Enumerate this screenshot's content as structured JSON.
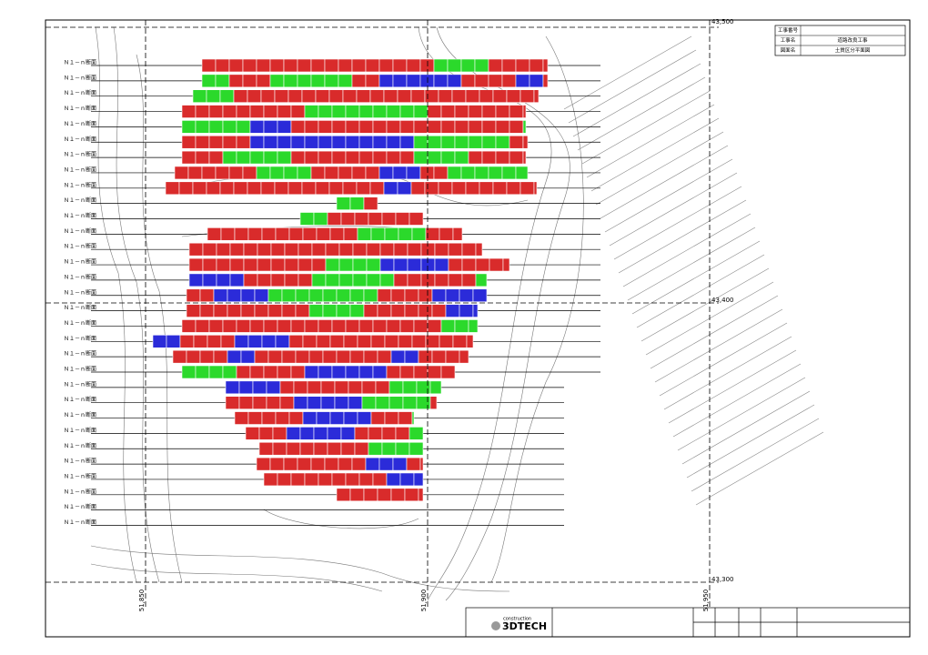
{
  "sections": {
    "labels": [
      "Ｎ１－ｎ断面",
      "Ｎ１－ｎ断面",
      "Ｎ１－ｎ断面",
      "Ｎ１－ｎ断面",
      "Ｎ１－ｎ断面",
      "Ｎ１－ｎ断面",
      "Ｎ１－ｎ断面",
      "Ｎ１－ｎ断面",
      "Ｎ１－ｎ断面",
      "Ｎ１－ｎ断面",
      "Ｎ１－ｎ断面",
      "Ｎ１－ｎ断面",
      "Ｎ１－ｎ断面",
      "Ｎ１－ｎ断面",
      "Ｎ１－ｎ断面",
      "Ｎ１－ｎ断面",
      "Ｎ１－ｎ断面",
      "Ｎ１－ｎ断面",
      "Ｎ１－ｎ断面",
      "Ｎ１－ｎ断面",
      "Ｎ１－ｎ断面",
      "Ｎ１－ｎ断面",
      "Ｎ１－ｎ断面",
      "Ｎ１－ｎ断面",
      "Ｎ１－ｎ断面",
      "Ｎ１－ｎ断面",
      "Ｎ１－ｎ断面",
      "Ｎ１－ｎ断面",
      "Ｎ１－ｎ断面",
      "Ｎ１－ｎ断面",
      "Ｎ１－ｎ断面"
    ]
  },
  "coordinates": {
    "northing": [
      "43,500",
      "43,400",
      "43,300"
    ],
    "easting": [
      "51,850",
      "51,900",
      "51,950"
    ]
  },
  "title_block": {
    "rows": [
      [
        "工事番号"
      ],
      [
        "工事名",
        "道路改良工事"
      ],
      [
        "図面名",
        "土質区分平面図"
      ]
    ]
  },
  "logo": {
    "tag": "construction",
    "brand": "3DTECH"
  }
}
